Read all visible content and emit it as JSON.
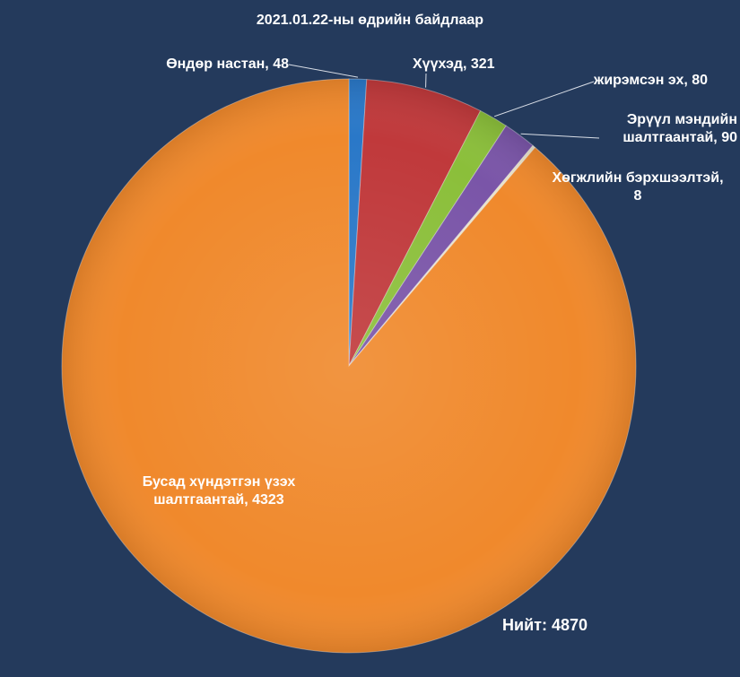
{
  "chart_data": {
    "type": "pie",
    "title": "2021.01.22-ны өдрийн байдлаар",
    "categories": [
      "Өндөр настан",
      "Хүүхэд",
      "жирэмсэн эх",
      "Эрүүл мэндийн шалтгаантай",
      "Хөгжлийн бэрхшээлтэй",
      "Бусад хүндэтгэн үзэх шалтгаантай"
    ],
    "values": [
      48,
      321,
      80,
      90,
      8,
      4323
    ],
    "colors": [
      "#2a78c8",
      "#c0393b",
      "#8bbf3a",
      "#7a55a8",
      "#e8e2c8",
      "#f0892c"
    ],
    "data_labels": [
      "Өндөр настан, 48",
      "Хүүхэд, 321",
      "жирэмсэн эх, 80",
      "Эрүүл мэндийн\nшалтгаантай, 90",
      "Хөгжлийн бэрхшээлтэй,\n8",
      "Бусад хүндэтгэн үзэх\nшалтгаантай, 4323"
    ],
    "start_angle_deg": 0,
    "direction": "clockwise"
  },
  "total_text": "Нийт:  4870"
}
